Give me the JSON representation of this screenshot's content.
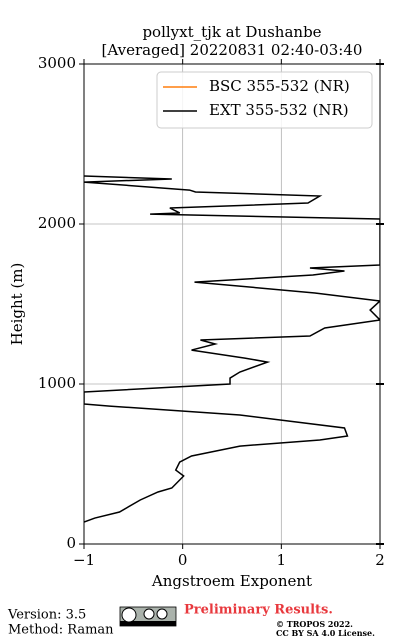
{
  "chart_data": {
    "type": "line",
    "title": "pollyxt_tjk at Dushanbe",
    "subtitle": "[Averaged] 20220831 02:40-03:40",
    "x_label": "Angstroem Exponent",
    "y_label": "Height (m)",
    "heights": [
      137,
      162,
      200,
      275,
      325,
      350,
      425,
      462,
      512,
      550,
      612,
      650,
      675,
      725,
      806,
      862,
      875,
      950,
      1000,
      1037,
      1075,
      1137,
      1162,
      1212,
      1250,
      1275,
      1300,
      1350,
      1400,
      1462,
      1519,
      1569,
      1637,
      1681,
      1706,
      1725,
      1744,
      2031,
      2062,
      2069,
      2100,
      2131,
      2175,
      2200,
      2212,
      2262,
      2281,
      2300
    ],
    "series": [
      {
        "name": "BSC 355-532 (NR)",
        "color": "#ff7f0e",
        "values": [
          null,
          null,
          null,
          null,
          null,
          null,
          null,
          null,
          null,
          null,
          null,
          null,
          null,
          null,
          null,
          null,
          null,
          null,
          null,
          null,
          null,
          null,
          null,
          null,
          null,
          null,
          null,
          null,
          null,
          null,
          null,
          null,
          null,
          null,
          null,
          null,
          null,
          null,
          null,
          null,
          null,
          null,
          null,
          null,
          null,
          null,
          null,
          null
        ]
      },
      {
        "name": "EXT 355-532 (NR)",
        "color": "#000000",
        "values": [
          -1,
          -0.89,
          -0.64,
          -0.43,
          -0.25,
          -0.11,
          0.01,
          -0.07,
          -0.03,
          0.09,
          0.58,
          1.39,
          1.67,
          1.64,
          0.58,
          -0.74,
          -1,
          -1,
          0.48,
          0.48,
          0.58,
          0.86,
          0.63,
          0.09,
          0.33,
          0.18,
          1.29,
          1.44,
          2.0,
          1.9,
          2.0,
          1.34,
          0.12,
          1.32,
          1.64,
          1.29,
          2.0,
          2.0,
          -0.33,
          -0.03,
          -0.13,
          1.27,
          1.39,
          0.13,
          0.07,
          -1,
          -0.11,
          -1
        ]
      }
    ],
    "xlim": [
      -1,
      2
    ],
    "xticks": [
      {
        "value": -1,
        "label": "−1"
      },
      0,
      1,
      2
    ],
    "ylim": [
      0,
      3000
    ],
    "yticks": [
      0,
      1000,
      2000,
      3000
    ],
    "grid": true,
    "legend": "upper right",
    "footer": {
      "version": "Version: 3.5",
      "method": "Method: Raman",
      "status": "Preliminary Results.",
      "copyright": "© TROPOS 2022.",
      "license": "CC BY SA 4.0 License."
    }
  }
}
